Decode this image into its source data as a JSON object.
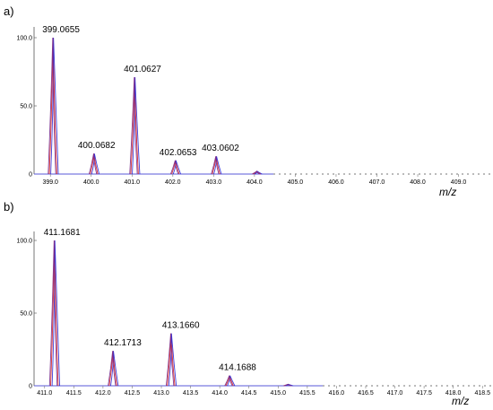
{
  "chart_data": [
    {
      "panel_label": "a)",
      "type": "line",
      "xlabel": "m/z",
      "x_ticks": [
        "399.0",
        "400.0",
        "401.0",
        "402.0",
        "403.0",
        "404.0",
        "405.0",
        "406.0",
        "407.0",
        "408.0",
        "409.0"
      ],
      "y_ticks": [
        "100.0",
        "50.0",
        "0"
      ],
      "xlim": [
        398.6,
        409.8
      ],
      "ylim": [
        0,
        100
      ],
      "peaks": [
        {
          "x": 399.0655,
          "y": 100,
          "label": "399.0655"
        },
        {
          "x": 400.0682,
          "y": 15,
          "label": "400.0682"
        },
        {
          "x": 401.0627,
          "y": 71,
          "label": "401.0627"
        },
        {
          "x": 402.0653,
          "y": 10,
          "label": "402.0653"
        },
        {
          "x": 403.0602,
          "y": 13,
          "label": "403.0602"
        },
        {
          "x": 404.06,
          "y": 2,
          "label": ""
        }
      ],
      "peak_colors": [
        "#d81b1b",
        "#2a2ad8",
        "#7a2a8a"
      ]
    },
    {
      "panel_label": "b)",
      "type": "line",
      "xlabel": "m/z",
      "x_ticks": [
        "411.0",
        "411.5",
        "412.0",
        "412.5",
        "413.0",
        "413.5",
        "414.0",
        "414.5",
        "415.0",
        "415.5",
        "416.0",
        "416.5",
        "417.0",
        "417.5",
        "418.0",
        "418.5"
      ],
      "y_ticks": [
        "100.0",
        "50.0",
        "0"
      ],
      "xlim": [
        410.85,
        418.65
      ],
      "ylim": [
        0,
        100
      ],
      "peaks": [
        {
          "x": 411.1681,
          "y": 100,
          "label": "411.1681"
        },
        {
          "x": 412.1713,
          "y": 24,
          "label": "412.1713"
        },
        {
          "x": 413.166,
          "y": 36,
          "label": "413.1660"
        },
        {
          "x": 414.1688,
          "y": 7,
          "label": "414.1688"
        },
        {
          "x": 415.17,
          "y": 1,
          "label": ""
        }
      ],
      "peak_colors": [
        "#d81b1b",
        "#2a2ad8",
        "#7a2a8a"
      ]
    }
  ]
}
